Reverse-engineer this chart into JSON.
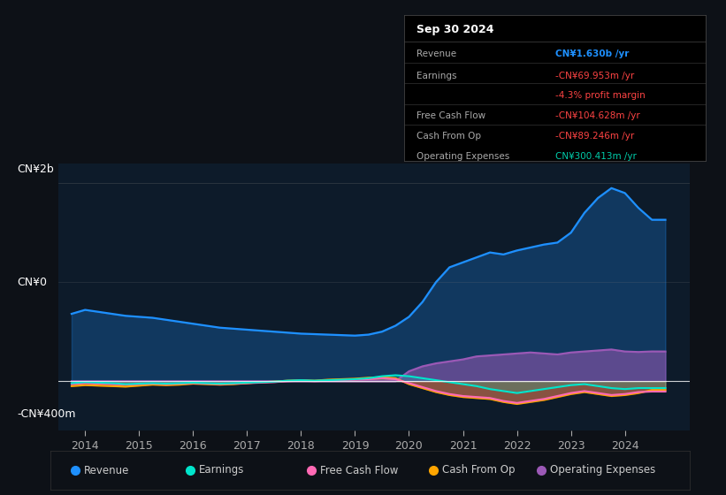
{
  "background_color": "#0d1117",
  "plot_bg_color": "#0d1b2a",
  "title_box": {
    "date": "Sep 30 2024",
    "rows": [
      {
        "label": "Revenue",
        "value": "CN¥1.630b /yr",
        "value_color": "#1e90ff"
      },
      {
        "label": "Earnings",
        "value": "-CN¥69.953m /yr",
        "value_color": "#ff4444"
      },
      {
        "label": "",
        "value": "-4.3% profit margin",
        "value_color": "#ff4444"
      },
      {
        "label": "Free Cash Flow",
        "value": "-CN¥104.628m /yr",
        "value_color": "#ff4444"
      },
      {
        "label": "Cash From Op",
        "value": "-CN¥89.246m /yr",
        "value_color": "#ff4444"
      },
      {
        "label": "Operating Expenses",
        "value": "CN¥300.413m /yr",
        "value_color": "#00ccaa"
      }
    ]
  },
  "ylabel_top": "CN¥2b",
  "ylabel_zero": "CN¥0",
  "ylabel_bottom": "-CN¥400m",
  "xlim": [
    2013.5,
    2025.2
  ],
  "ylim": [
    -500000000,
    2200000000
  ],
  "xticks": [
    2014,
    2015,
    2016,
    2017,
    2018,
    2019,
    2020,
    2021,
    2022,
    2023,
    2024
  ],
  "legend_items": [
    {
      "label": "Revenue",
      "color": "#1e90ff"
    },
    {
      "label": "Earnings",
      "color": "#00e5cc"
    },
    {
      "label": "Free Cash Flow",
      "color": "#ff69b4"
    },
    {
      "label": "Cash From Op",
      "color": "#ffa500"
    },
    {
      "label": "Operating Expenses",
      "color": "#9b59b6"
    }
  ],
  "revenue": {
    "x": [
      2013.75,
      2014.0,
      2014.25,
      2014.5,
      2014.75,
      2015.0,
      2015.25,
      2015.5,
      2015.75,
      2016.0,
      2016.25,
      2016.5,
      2016.75,
      2017.0,
      2017.25,
      2017.5,
      2017.75,
      2018.0,
      2018.25,
      2018.5,
      2018.75,
      2019.0,
      2019.25,
      2019.5,
      2019.75,
      2020.0,
      2020.25,
      2020.5,
      2020.75,
      2021.0,
      2021.25,
      2021.5,
      2021.75,
      2022.0,
      2022.25,
      2022.5,
      2022.75,
      2023.0,
      2023.25,
      2023.5,
      2023.75,
      2024.0,
      2024.25,
      2024.5,
      2024.75
    ],
    "y": [
      680000000,
      720000000,
      700000000,
      680000000,
      660000000,
      650000000,
      640000000,
      620000000,
      600000000,
      580000000,
      560000000,
      540000000,
      530000000,
      520000000,
      510000000,
      500000000,
      490000000,
      480000000,
      475000000,
      470000000,
      465000000,
      460000000,
      470000000,
      500000000,
      560000000,
      650000000,
      800000000,
      1000000000,
      1150000000,
      1200000000,
      1250000000,
      1300000000,
      1280000000,
      1320000000,
      1350000000,
      1380000000,
      1400000000,
      1500000000,
      1700000000,
      1850000000,
      1950000000,
      1900000000,
      1750000000,
      1630000000,
      1630000000
    ],
    "color": "#1e90ff"
  },
  "earnings": {
    "x": [
      2013.75,
      2014.0,
      2014.25,
      2014.5,
      2014.75,
      2015.0,
      2015.25,
      2015.5,
      2015.75,
      2016.0,
      2016.25,
      2016.5,
      2016.75,
      2017.0,
      2017.25,
      2017.5,
      2017.75,
      2018.0,
      2018.25,
      2018.5,
      2018.75,
      2019.0,
      2019.25,
      2019.5,
      2019.75,
      2020.0,
      2020.25,
      2020.5,
      2020.75,
      2021.0,
      2021.25,
      2021.5,
      2021.75,
      2022.0,
      2022.25,
      2022.5,
      2022.75,
      2023.0,
      2023.25,
      2023.5,
      2023.75,
      2024.0,
      2024.25,
      2024.5,
      2024.75
    ],
    "y": [
      -20000000,
      -10000000,
      -15000000,
      -20000000,
      -30000000,
      -25000000,
      -20000000,
      -25000000,
      -20000000,
      -15000000,
      -20000000,
      -25000000,
      -20000000,
      -15000000,
      -10000000,
      -5000000,
      5000000,
      10000000,
      5000000,
      10000000,
      15000000,
      20000000,
      30000000,
      50000000,
      60000000,
      50000000,
      30000000,
      10000000,
      -10000000,
      -30000000,
      -50000000,
      -80000000,
      -100000000,
      -120000000,
      -100000000,
      -80000000,
      -60000000,
      -40000000,
      -30000000,
      -50000000,
      -70000000,
      -80000000,
      -70000000,
      -69953000,
      -70000000
    ],
    "color": "#00e5cc"
  },
  "free_cash_flow": {
    "x": [
      2013.75,
      2014.0,
      2014.25,
      2014.5,
      2014.75,
      2015.0,
      2015.25,
      2015.5,
      2015.75,
      2016.0,
      2016.25,
      2016.5,
      2016.75,
      2017.0,
      2017.25,
      2017.5,
      2017.75,
      2018.0,
      2018.25,
      2018.5,
      2018.75,
      2019.0,
      2019.25,
      2019.5,
      2019.75,
      2020.0,
      2020.25,
      2020.5,
      2020.75,
      2021.0,
      2021.25,
      2021.5,
      2021.75,
      2022.0,
      2022.25,
      2022.5,
      2022.75,
      2023.0,
      2023.25,
      2023.5,
      2023.75,
      2024.0,
      2024.25,
      2024.5,
      2024.75
    ],
    "y": [
      -30000000,
      -20000000,
      -25000000,
      -30000000,
      -35000000,
      -30000000,
      -25000000,
      -30000000,
      -25000000,
      -20000000,
      -25000000,
      -30000000,
      -25000000,
      -20000000,
      -15000000,
      -10000000,
      0,
      5000000,
      0,
      5000000,
      10000000,
      15000000,
      20000000,
      30000000,
      20000000,
      -20000000,
      -60000000,
      -100000000,
      -130000000,
      -150000000,
      -160000000,
      -170000000,
      -200000000,
      -220000000,
      -200000000,
      -180000000,
      -150000000,
      -120000000,
      -100000000,
      -120000000,
      -140000000,
      -130000000,
      -110000000,
      -104628000,
      -105000000
    ],
    "color": "#ff69b4"
  },
  "cash_from_op": {
    "x": [
      2013.75,
      2014.0,
      2014.25,
      2014.5,
      2014.75,
      2015.0,
      2015.25,
      2015.5,
      2015.75,
      2016.0,
      2016.25,
      2016.5,
      2016.75,
      2017.0,
      2017.25,
      2017.5,
      2017.75,
      2018.0,
      2018.25,
      2018.5,
      2018.75,
      2019.0,
      2019.25,
      2019.5,
      2019.75,
      2020.0,
      2020.25,
      2020.5,
      2020.75,
      2021.0,
      2021.25,
      2021.5,
      2021.75,
      2022.0,
      2022.25,
      2022.5,
      2022.75,
      2023.0,
      2023.25,
      2023.5,
      2023.75,
      2024.0,
      2024.25,
      2024.5,
      2024.75
    ],
    "y": [
      -50000000,
      -40000000,
      -45000000,
      -50000000,
      -55000000,
      -45000000,
      -35000000,
      -40000000,
      -35000000,
      -25000000,
      -30000000,
      -35000000,
      -30000000,
      -20000000,
      -10000000,
      -5000000,
      5000000,
      10000000,
      5000000,
      15000000,
      20000000,
      25000000,
      35000000,
      40000000,
      30000000,
      -30000000,
      -70000000,
      -110000000,
      -140000000,
      -160000000,
      -170000000,
      -180000000,
      -210000000,
      -230000000,
      -210000000,
      -190000000,
      -160000000,
      -130000000,
      -110000000,
      -130000000,
      -150000000,
      -140000000,
      -120000000,
      -89246000,
      -90000000
    ],
    "color": "#ffa500"
  },
  "operating_expenses": {
    "x": [
      2013.75,
      2014.0,
      2014.25,
      2014.5,
      2014.75,
      2015.0,
      2015.25,
      2015.5,
      2015.75,
      2016.0,
      2016.25,
      2016.5,
      2016.75,
      2017.0,
      2017.25,
      2017.5,
      2017.75,
      2018.0,
      2018.25,
      2018.5,
      2018.75,
      2019.0,
      2019.25,
      2019.5,
      2019.75,
      2020.0,
      2020.25,
      2020.5,
      2020.75,
      2021.0,
      2021.25,
      2021.5,
      2021.75,
      2022.0,
      2022.25,
      2022.5,
      2022.75,
      2023.0,
      2023.25,
      2023.5,
      2023.75,
      2024.0,
      2024.25,
      2024.5,
      2024.75
    ],
    "y": [
      0,
      0,
      0,
      0,
      0,
      0,
      0,
      0,
      0,
      0,
      0,
      0,
      0,
      0,
      0,
      0,
      0,
      0,
      0,
      0,
      0,
      0,
      0,
      0,
      0,
      100000000,
      150000000,
      180000000,
      200000000,
      220000000,
      250000000,
      260000000,
      270000000,
      280000000,
      290000000,
      280000000,
      270000000,
      290000000,
      300000000,
      310000000,
      320000000,
      300000000,
      295000000,
      300413000,
      300000000
    ],
    "color": "#9b59b6"
  }
}
